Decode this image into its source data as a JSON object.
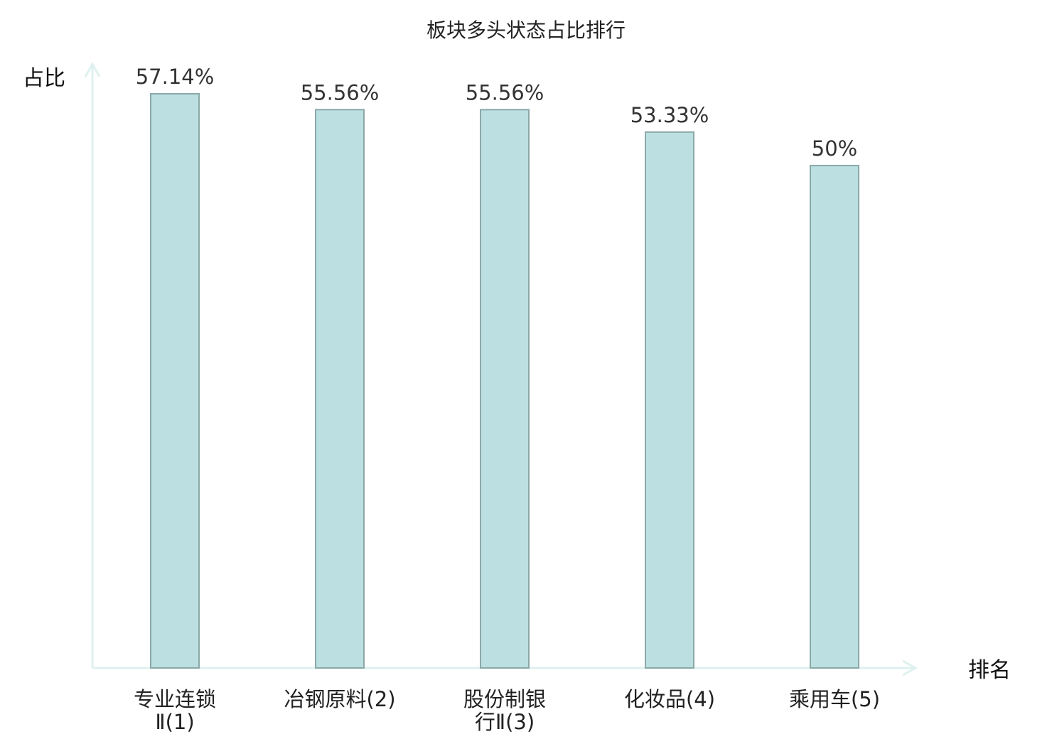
{
  "chart_data": {
    "type": "bar",
    "title": "板块多头状态占比排行",
    "ylabel": "占比",
    "xlabel": "排名",
    "categories": [
      {
        "lines": [
          "专业连锁",
          "Ⅱ(1)"
        ],
        "highlight": false
      },
      {
        "lines": [
          "冶钢原料(2)"
        ],
        "highlight": true
      },
      {
        "lines": [
          "股份制银",
          "行Ⅱ(3)"
        ],
        "highlight": false
      },
      {
        "lines": [
          "化妆品(4)"
        ],
        "highlight": false
      },
      {
        "lines": [
          "乘用车(5)"
        ],
        "highlight": false
      }
    ],
    "values": [
      57.14,
      55.56,
      55.56,
      53.33,
      50
    ],
    "value_labels": [
      "57.14%",
      "55.56%",
      "55.56%",
      "53.33%",
      "50%"
    ],
    "ylim": [
      0,
      60
    ],
    "grid": false,
    "colors": {
      "bar_fill": "#bce0e1",
      "bar_stroke": "#8ba8a8",
      "axis": "#dff1ef",
      "highlight_text": "#e0201b"
    }
  }
}
